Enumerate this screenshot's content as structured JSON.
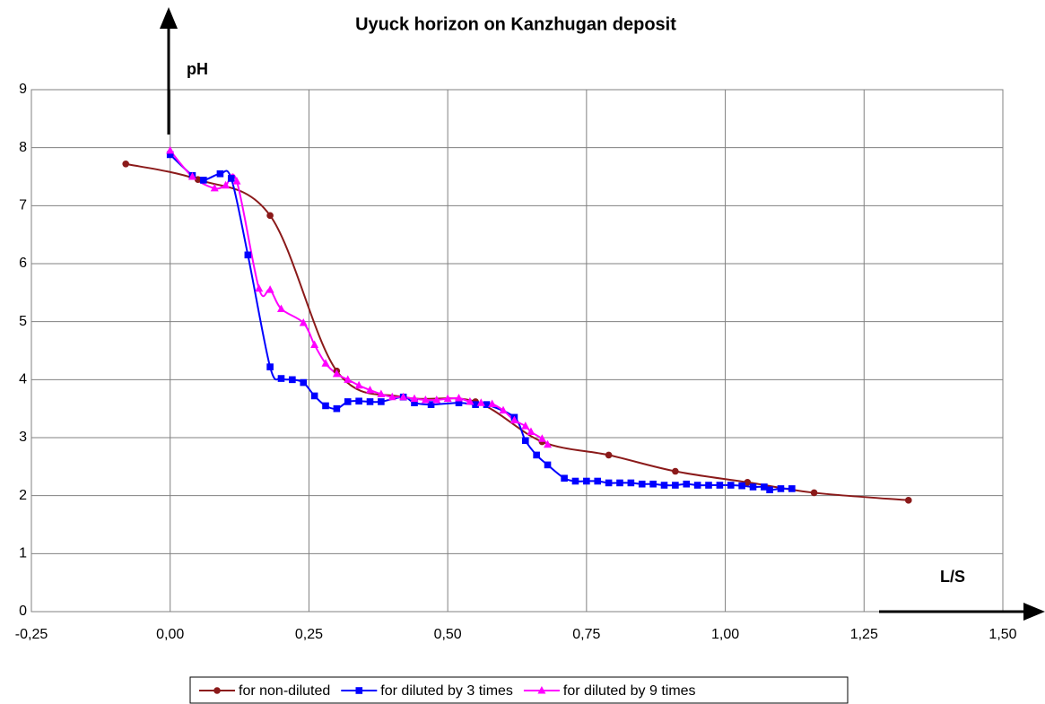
{
  "chart_data": {
    "type": "line",
    "title": "Uyuck horizon on Kanzhugan deposit",
    "y_label": "pH",
    "x_label": "L/S",
    "xlim": [
      -0.25,
      1.5
    ],
    "xticks": [
      {
        "value": -0.25,
        "label": "-0,25"
      },
      {
        "value": 0,
        "label": "0,00"
      },
      {
        "value": 0.25,
        "label": "0,25"
      },
      {
        "value": 0.5,
        "label": "0,50"
      },
      {
        "value": 0.75,
        "label": "0,75"
      },
      {
        "value": 1,
        "label": "1,00"
      },
      {
        "value": 1.25,
        "label": "1,25"
      },
      {
        "value": 1.5,
        "label": "1,50"
      }
    ],
    "ylim": [
      0,
      9
    ],
    "yticks": [
      0,
      1,
      2,
      3,
      4,
      5,
      6,
      7,
      8,
      9
    ],
    "grid": true,
    "legend": "bottom",
    "series": [
      {
        "name": "for non-diluted",
        "color": "#8b1a1a",
        "marker": "circle",
        "x": [
          -0.08,
          0.05,
          0.18,
          0.3,
          0.42,
          0.55,
          0.67,
          0.79,
          0.91,
          1.04,
          1.16,
          1.33
        ],
        "values": [
          7.72,
          7.45,
          6.83,
          4.15,
          3.7,
          3.62,
          2.93,
          2.7,
          2.42,
          2.23,
          2.05,
          1.92
        ]
      },
      {
        "name": "for diluted by 3 times",
        "color": "#0000ff",
        "marker": "square",
        "x": [
          0.0,
          0.04,
          0.06,
          0.09,
          0.11,
          0.14,
          0.18,
          0.2,
          0.22,
          0.24,
          0.26,
          0.28,
          0.3,
          0.32,
          0.34,
          0.36,
          0.38,
          0.42,
          0.44,
          0.47,
          0.52,
          0.55,
          0.57,
          0.62,
          0.64,
          0.66,
          0.68,
          0.71,
          0.73,
          0.75,
          0.77,
          0.79,
          0.81,
          0.83,
          0.85,
          0.87,
          0.89,
          0.91,
          0.93,
          0.95,
          0.97,
          0.99,
          1.01,
          1.03,
          1.05,
          1.07,
          1.08,
          1.1,
          1.12
        ],
        "values": [
          7.88,
          7.52,
          7.44,
          7.55,
          7.47,
          6.15,
          4.22,
          4.02,
          4.0,
          3.95,
          3.72,
          3.55,
          3.5,
          3.62,
          3.63,
          3.62,
          3.62,
          3.7,
          3.6,
          3.57,
          3.6,
          3.57,
          3.57,
          3.35,
          2.95,
          2.7,
          2.53,
          2.3,
          2.25,
          2.25,
          2.25,
          2.22,
          2.22,
          2.22,
          2.2,
          2.2,
          2.18,
          2.18,
          2.2,
          2.18,
          2.18,
          2.18,
          2.18,
          2.17,
          2.15,
          2.15,
          2.1,
          2.12,
          2.12
        ]
      },
      {
        "name": "for diluted by 9 times",
        "color": "#ff00ff",
        "marker": "triangle",
        "x": [
          0.0,
          0.04,
          0.08,
          0.1,
          0.12,
          0.16,
          0.18,
          0.2,
          0.24,
          0.26,
          0.28,
          0.3,
          0.32,
          0.34,
          0.36,
          0.38,
          0.4,
          0.42,
          0.44,
          0.46,
          0.48,
          0.5,
          0.52,
          0.54,
          0.56,
          0.58,
          0.6,
          0.62,
          0.64,
          0.65,
          0.67,
          0.68
        ],
        "values": [
          7.95,
          7.5,
          7.3,
          7.35,
          7.42,
          5.57,
          5.55,
          5.22,
          4.98,
          4.6,
          4.28,
          4.1,
          4.0,
          3.9,
          3.82,
          3.75,
          3.7,
          3.7,
          3.67,
          3.65,
          3.65,
          3.67,
          3.68,
          3.62,
          3.6,
          3.58,
          3.47,
          3.3,
          3.2,
          3.1,
          2.98,
          2.88
        ]
      }
    ]
  }
}
